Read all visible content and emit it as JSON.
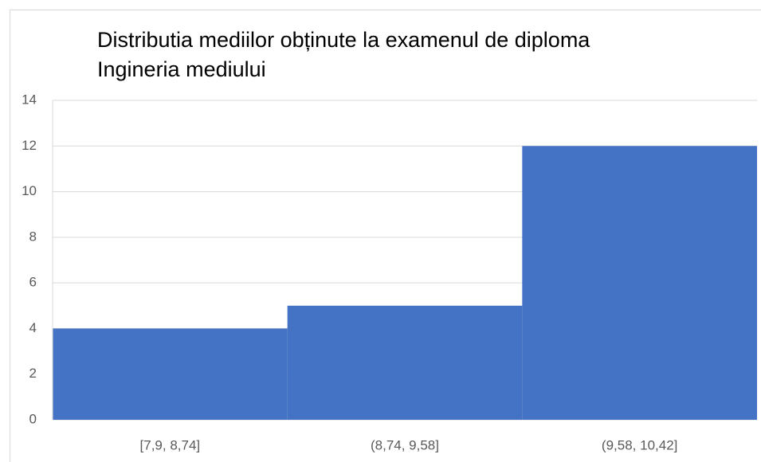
{
  "chart_data": {
    "type": "bar",
    "title": "Distributia mediilor obținute la examenul de diploma",
    "subtitle": "Ingineria mediului",
    "categories": [
      "[7,9, 8,74]",
      "(8,74, 9,58]",
      "(9,58, 10,42]"
    ],
    "values": [
      4,
      5,
      12
    ],
    "color": "#4472c4",
    "ylim": [
      0,
      14
    ],
    "yticks": [
      0,
      2,
      4,
      6,
      8,
      10,
      12,
      14
    ],
    "grid": true
  }
}
